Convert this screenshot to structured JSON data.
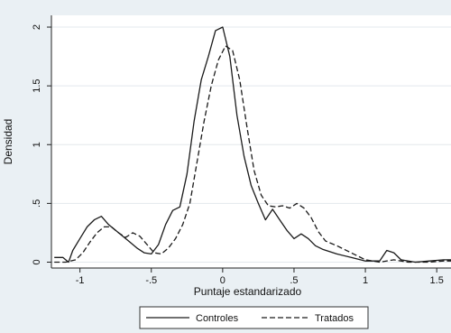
{
  "chart_data": {
    "type": "line",
    "title": "",
    "xlabel": "Puntaje estandarizado",
    "ylabel": "Densidad",
    "xlim": [
      -1.2,
      1.6
    ],
    "ylim": [
      -0.05,
      2.1
    ],
    "x_ticks": [
      {
        "value": -1,
        "label": "-1"
      },
      {
        "value": -0.5,
        "label": "-.5"
      },
      {
        "value": 0,
        "label": "0"
      },
      {
        "value": 0.5,
        "label": ".5"
      },
      {
        "value": 1,
        "label": "1"
      },
      {
        "value": 1.5,
        "label": "1.5"
      }
    ],
    "y_ticks": [
      {
        "value": 0,
        "label": "0"
      },
      {
        "value": 0.5,
        "label": ".5"
      },
      {
        "value": 1,
        "label": "1"
      },
      {
        "value": 1.5,
        "label": "1.5"
      },
      {
        "value": 2,
        "label": "2"
      }
    ],
    "grid": true,
    "legend_position": "bottom",
    "series": [
      {
        "name": "Controles",
        "style": "solid",
        "color": "#1a1a1a",
        "points": [
          [
            -1.18,
            0.04
          ],
          [
            -1.12,
            0.04
          ],
          [
            -1.08,
            0.0
          ],
          [
            -1.05,
            0.1
          ],
          [
            -1.0,
            0.2
          ],
          [
            -0.95,
            0.3
          ],
          [
            -0.9,
            0.36
          ],
          [
            -0.85,
            0.39
          ],
          [
            -0.8,
            0.32
          ],
          [
            -0.75,
            0.27
          ],
          [
            -0.7,
            0.22
          ],
          [
            -0.65,
            0.17
          ],
          [
            -0.6,
            0.12
          ],
          [
            -0.55,
            0.08
          ],
          [
            -0.5,
            0.07
          ],
          [
            -0.45,
            0.15
          ],
          [
            -0.4,
            0.32
          ],
          [
            -0.35,
            0.44
          ],
          [
            -0.3,
            0.47
          ],
          [
            -0.25,
            0.75
          ],
          [
            -0.2,
            1.2
          ],
          [
            -0.15,
            1.55
          ],
          [
            -0.1,
            1.75
          ],
          [
            -0.05,
            1.97
          ],
          [
            0.0,
            2.0
          ],
          [
            0.05,
            1.75
          ],
          [
            0.1,
            1.25
          ],
          [
            0.15,
            0.9
          ],
          [
            0.2,
            0.65
          ],
          [
            0.25,
            0.5
          ],
          [
            0.3,
            0.36
          ],
          [
            0.35,
            0.45
          ],
          [
            0.4,
            0.36
          ],
          [
            0.45,
            0.27
          ],
          [
            0.5,
            0.2
          ],
          [
            0.55,
            0.24
          ],
          [
            0.6,
            0.2
          ],
          [
            0.65,
            0.14
          ],
          [
            0.7,
            0.11
          ],
          [
            0.8,
            0.07
          ],
          [
            0.9,
            0.04
          ],
          [
            1.0,
            0.01
          ],
          [
            1.1,
            0.01
          ],
          [
            1.15,
            0.1
          ],
          [
            1.2,
            0.08
          ],
          [
            1.25,
            0.02
          ],
          [
            1.35,
            0.0
          ],
          [
            1.45,
            0.01
          ],
          [
            1.55,
            0.02
          ],
          [
            1.6,
            0.02
          ]
        ]
      },
      {
        "name": "Tratados",
        "style": "dashed",
        "color": "#1a1a1a",
        "points": [
          [
            -1.18,
            0.0
          ],
          [
            -1.1,
            0.0
          ],
          [
            -1.03,
            0.02
          ],
          [
            -0.98,
            0.08
          ],
          [
            -0.93,
            0.17
          ],
          [
            -0.88,
            0.25
          ],
          [
            -0.83,
            0.3
          ],
          [
            -0.78,
            0.3
          ],
          [
            -0.73,
            0.25
          ],
          [
            -0.68,
            0.21
          ],
          [
            -0.63,
            0.25
          ],
          [
            -0.58,
            0.22
          ],
          [
            -0.53,
            0.15
          ],
          [
            -0.48,
            0.08
          ],
          [
            -0.43,
            0.07
          ],
          [
            -0.38,
            0.12
          ],
          [
            -0.33,
            0.2
          ],
          [
            -0.28,
            0.32
          ],
          [
            -0.23,
            0.5
          ],
          [
            -0.18,
            0.85
          ],
          [
            -0.13,
            1.2
          ],
          [
            -0.08,
            1.5
          ],
          [
            -0.03,
            1.72
          ],
          [
            0.02,
            1.84
          ],
          [
            0.07,
            1.8
          ],
          [
            0.12,
            1.55
          ],
          [
            0.17,
            1.15
          ],
          [
            0.22,
            0.78
          ],
          [
            0.27,
            0.57
          ],
          [
            0.32,
            0.48
          ],
          [
            0.37,
            0.47
          ],
          [
            0.42,
            0.48
          ],
          [
            0.47,
            0.46
          ],
          [
            0.52,
            0.5
          ],
          [
            0.57,
            0.46
          ],
          [
            0.62,
            0.38
          ],
          [
            0.67,
            0.26
          ],
          [
            0.72,
            0.18
          ],
          [
            0.8,
            0.14
          ],
          [
            0.9,
            0.08
          ],
          [
            1.0,
            0.02
          ],
          [
            1.1,
            0.0
          ],
          [
            1.2,
            0.02
          ],
          [
            1.3,
            0.0
          ],
          [
            1.45,
            0.0
          ],
          [
            1.55,
            0.01
          ],
          [
            1.6,
            0.01
          ]
        ]
      }
    ]
  }
}
